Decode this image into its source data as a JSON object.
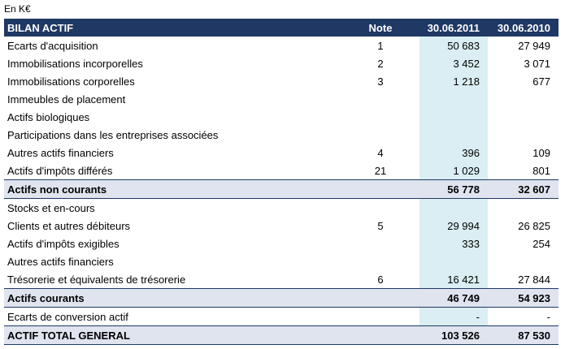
{
  "header": {
    "unit": "En K€"
  },
  "table": {
    "columns": [
      "BILAN ACTIF",
      "Note",
      "30.06.2011",
      "30.06.2010"
    ],
    "rows": [
      {
        "cells": [
          "Ecarts d'acquisition",
          "1",
          "50 683",
          "27 949"
        ]
      },
      {
        "cells": [
          "Immobilisations incorporelles",
          "2",
          "3 452",
          "3 071"
        ]
      },
      {
        "cells": [
          "Immobilisations corporelles",
          "3",
          "1 218",
          "677"
        ]
      },
      {
        "cells": [
          "Immeubles de placement",
          null,
          null,
          null
        ]
      },
      {
        "cells": [
          "Actifs biologiques",
          null,
          null,
          null
        ]
      },
      {
        "cells": [
          "Participations dans les entreprises associées",
          null,
          null,
          null
        ]
      },
      {
        "cells": [
          "Autres actifs financiers",
          "4",
          "396",
          "109"
        ]
      },
      {
        "cells": [
          "Actifs d'impôts différés",
          "21",
          "1 029",
          "801"
        ]
      },
      {
        "cells": [
          "Actifs non courants",
          null,
          "56 778",
          "32 607"
        ],
        "total": true
      },
      {
        "cells": [
          "Stocks et en-cours",
          null,
          null,
          null
        ]
      },
      {
        "cells": [
          "Clients et autres débiteurs",
          "5",
          "29 994",
          "26 825"
        ]
      },
      {
        "cells": [
          "Actifs d'impôts exigibles",
          null,
          "333",
          "254"
        ]
      },
      {
        "cells": [
          "Autres actifs financiers",
          null,
          null,
          null
        ]
      },
      {
        "cells": [
          "Trésorerie et équivalents de trésorerie",
          "6",
          "16 421",
          "27 844"
        ]
      },
      {
        "cells": [
          "Actifs courants",
          null,
          "46 749",
          "54 923"
        ],
        "total": true
      },
      {
        "cells": [
          "Ecarts de conversion actif",
          null,
          "-",
          "-"
        ]
      },
      {
        "cells": [
          "ACTIF TOTAL GENERAL",
          null,
          "103 526",
          "87 530"
        ],
        "total": true
      }
    ]
  }
}
